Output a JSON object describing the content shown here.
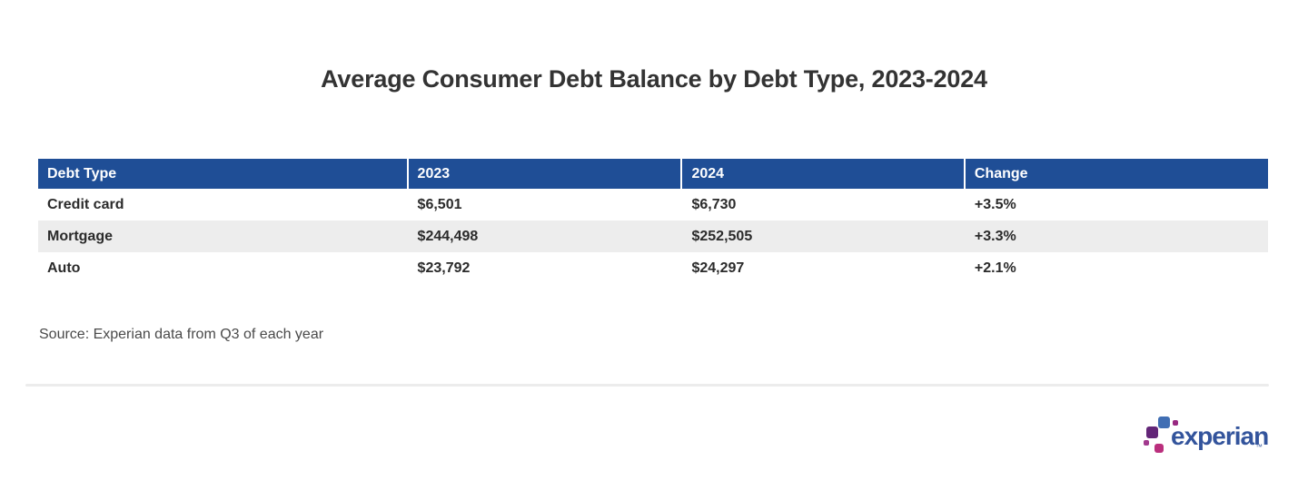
{
  "chart_data": {
    "type": "table",
    "title": "Average Consumer Debt Balance by Debt Type, 2023-2024",
    "columns": [
      "Debt Type",
      "2023",
      "2024",
      "Change"
    ],
    "rows": [
      [
        "Credit card",
        "$6,501",
        "$6,730",
        "+3.5%"
      ],
      [
        "Mortgage",
        "$244,498",
        "$252,505",
        "+3.3%"
      ],
      [
        "Auto",
        "$23,792",
        "$24,297",
        "+2.1%"
      ]
    ],
    "source": "Source: Experian data from Q3 of each year",
    "layout": {
      "header_text_color": "#ffffff",
      "alt_rows_shaded": true
    }
  },
  "logo": {
    "brand": "experian",
    "trademark": "™"
  },
  "colors": {
    "table_header_bg": "#1f4e96",
    "alt_row_bg": "#ededed",
    "title_text": "#333333",
    "body_text": "#2b2b2b",
    "source_text": "#4a4a4a",
    "wordmark_blue": "#33549c",
    "logo_light_blue": "#406eb3",
    "logo_magenta": "#982881",
    "logo_purple": "#632678",
    "logo_violet": "#a23a8e",
    "logo_pink": "#ba2f7d"
  }
}
